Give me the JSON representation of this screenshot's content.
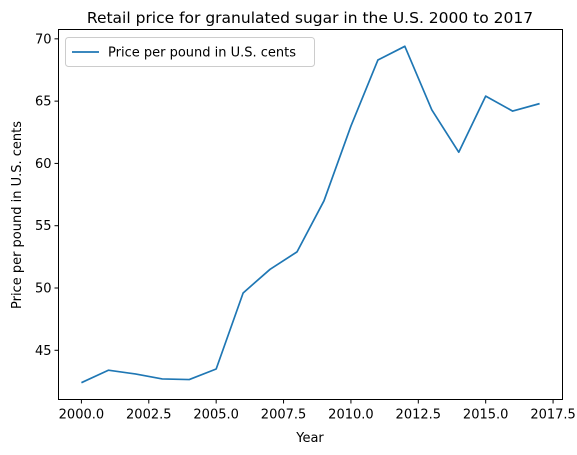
{
  "chart_data": {
    "type": "line",
    "title": "Retail price for granulated sugar in the U.S. 2000 to 2017",
    "xlabel": "Year",
    "ylabel": "Price per pound in U.S. cents",
    "xlim": [
      1999.15,
      2017.85
    ],
    "ylim": [
      41.05,
      70.75
    ],
    "xticks": [
      2000.0,
      2002.5,
      2005.0,
      2007.5,
      2010.0,
      2012.5,
      2015.0,
      2017.5
    ],
    "xtick_labels": [
      "2000.0",
      "2002.5",
      "2005.0",
      "2007.5",
      "2010.0",
      "2012.5",
      "2015.0",
      "2017.5"
    ],
    "yticks": [
      45,
      50,
      55,
      60,
      65,
      70
    ],
    "ytick_labels": [
      "45",
      "50",
      "55",
      "60",
      "65",
      "70"
    ],
    "grid": false,
    "legend_position": "top-left",
    "series": [
      {
        "name": "Price per pound in U.S. cents",
        "color": "#1f77b4",
        "x": [
          2000,
          2001,
          2002,
          2003,
          2004,
          2005,
          2006,
          2007,
          2008,
          2009,
          2010,
          2011,
          2012,
          2013,
          2014,
          2015,
          2016,
          2017
        ],
        "values": [
          42.4,
          43.4,
          43.1,
          42.7,
          42.65,
          43.5,
          49.6,
          51.5,
          52.9,
          57.0,
          63.0,
          68.3,
          69.4,
          64.3,
          60.9,
          65.4,
          64.2,
          64.8
        ]
      }
    ]
  }
}
